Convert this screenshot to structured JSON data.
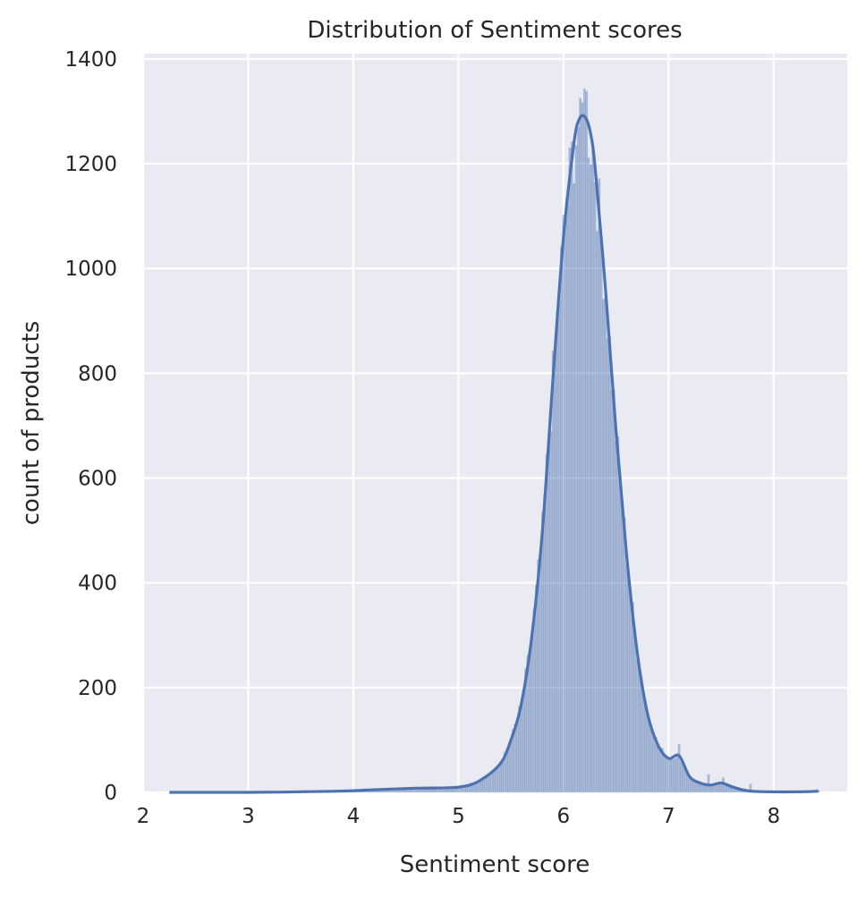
{
  "chart_data": {
    "type": "bar",
    "title": "Distribution of Sentiment scores",
    "xlabel": "Sentiment score",
    "ylabel": "count of products",
    "xlim": [
      2.0,
      8.7
    ],
    "ylim": [
      0,
      1410
    ],
    "x_ticks": [
      2,
      3,
      4,
      5,
      6,
      7,
      8
    ],
    "y_ticks": [
      0,
      200,
      400,
      600,
      800,
      1000,
      1200,
      1400
    ],
    "grid": true,
    "bin_width": 0.02,
    "histogram_color": "#4c72b0",
    "kde_color": "#4c72b0",
    "background_color": "#eaeaf2",
    "histogram_peaks": [
      {
        "x": 6.15,
        "y": 1325
      },
      {
        "x": 6.19,
        "y": 1343
      },
      {
        "x": 6.21,
        "y": 1338
      },
      {
        "x": 7.09,
        "y": 92
      },
      {
        "x": 7.37,
        "y": 34
      },
      {
        "x": 7.51,
        "y": 28
      },
      {
        "x": 7.77,
        "y": 16
      }
    ],
    "kde": {
      "x": [
        2.25,
        3.0,
        3.8,
        4.2,
        4.6,
        5.0,
        5.2,
        5.4,
        5.5,
        5.6,
        5.7,
        5.8,
        5.9,
        6.0,
        6.1,
        6.15,
        6.2,
        6.25,
        6.3,
        6.4,
        6.5,
        6.6,
        6.7,
        6.8,
        6.9,
        7.0,
        7.1,
        7.2,
        7.3,
        7.4,
        7.5,
        7.6,
        7.7,
        7.8,
        8.0,
        8.2,
        8.4,
        8.42
      ],
      "y": [
        0,
        0,
        2,
        5,
        8,
        10,
        22,
        55,
        100,
        170,
        300,
        500,
        790,
        1060,
        1240,
        1285,
        1290,
        1265,
        1195,
        960,
        690,
        455,
        270,
        150,
        90,
        65,
        70,
        30,
        18,
        14,
        18,
        11,
        5,
        2,
        1,
        1,
        2,
        4
      ]
    }
  }
}
